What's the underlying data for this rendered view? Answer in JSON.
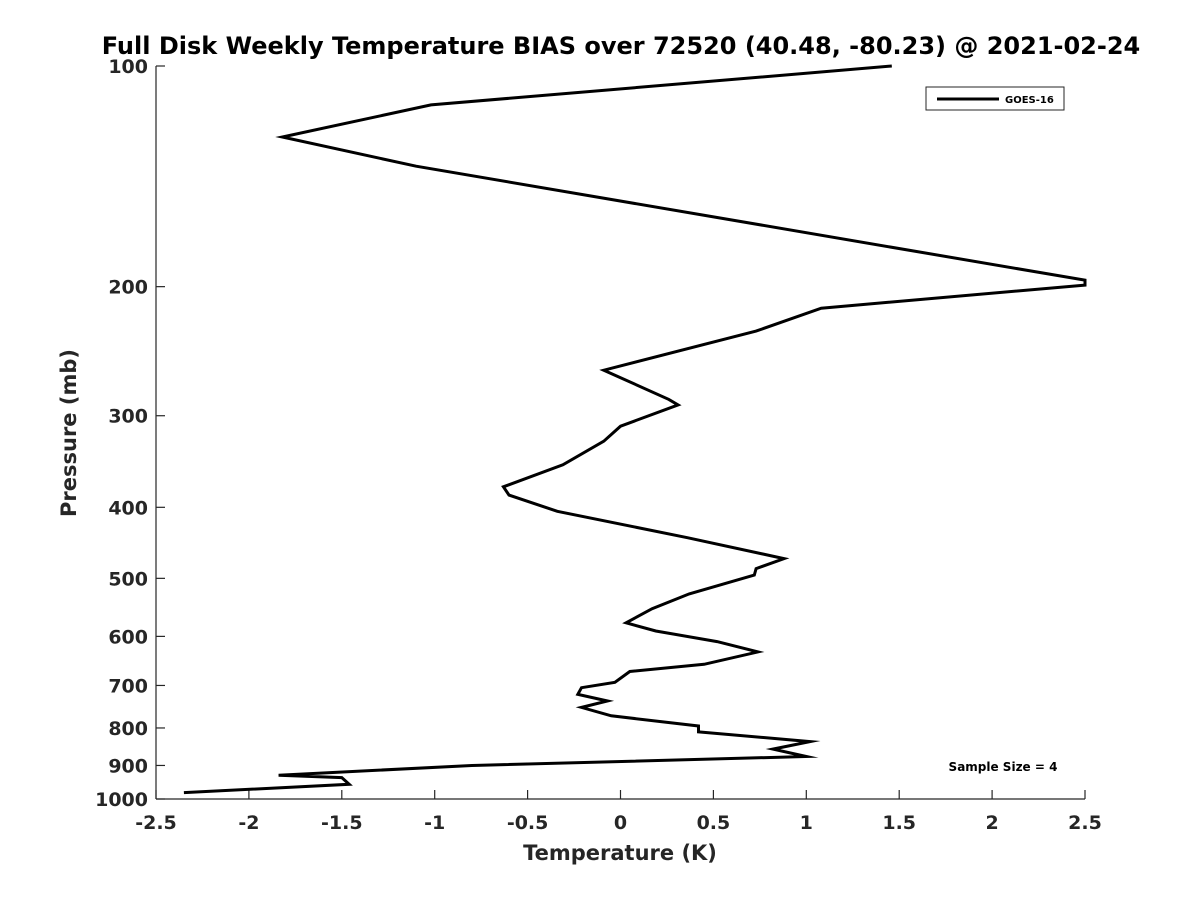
{
  "chart_data": {
    "type": "line",
    "title": "Full Disk Weekly Temperature BIAS over 72520 (40.48, -80.23) @ 2021-02-24",
    "xlabel": "Temperature (K)",
    "ylabel": "Pressure (mb)",
    "xlim": [
      -2.5,
      2.5
    ],
    "ylim": [
      100,
      1000
    ],
    "y_scale": "log",
    "y_reversed": true,
    "x_ticks": [
      "-2.5",
      "-2",
      "-1.5",
      "-1",
      "-0.5",
      "0",
      "0.5",
      "1",
      "1.5",
      "2",
      "2.5"
    ],
    "x_tick_values": [
      -2.5,
      -2,
      -1.5,
      -1,
      -0.5,
      0,
      0.5,
      1,
      1.5,
      2,
      2.5
    ],
    "y_ticks": [
      "100",
      "200",
      "300",
      "400",
      "500",
      "600",
      "700",
      "800",
      "900",
      "1000"
    ],
    "y_tick_values": [
      100,
      200,
      300,
      400,
      500,
      600,
      700,
      800,
      900,
      1000
    ],
    "grid": false,
    "legend_position": "top-right",
    "annotation": "Sample Size = 4",
    "series": [
      {
        "name": "GOES-16",
        "color": "#000000",
        "x": [
          1.46,
          -1.02,
          -1.82,
          -1.1,
          2.5,
          2.5,
          1.08,
          0.73,
          -0.09,
          0.26,
          0.31,
          0.0,
          -0.09,
          -0.31,
          -0.63,
          -0.6,
          -0.34,
          0.36,
          0.88,
          0.73,
          0.72,
          0.37,
          0.17,
          0.03,
          0.19,
          0.52,
          0.74,
          0.45,
          0.05,
          -0.03,
          -0.21,
          -0.23,
          -0.07,
          -0.21,
          -0.05,
          0.42,
          0.42,
          1.02,
          0.82,
          1.0,
          -0.8,
          -1.84,
          -1.5,
          -1.46,
          -2.35
        ],
        "y": [
          100,
          113,
          125,
          137,
          196,
          199,
          214,
          230,
          260,
          285,
          290,
          310,
          325,
          350,
          375,
          385,
          405,
          440,
          470,
          485,
          495,
          525,
          550,
          575,
          590,
          610,
          630,
          655,
          670,
          693,
          705,
          720,
          735,
          750,
          770,
          795,
          810,
          835,
          855,
          875,
          900,
          928,
          935,
          955,
          980
        ]
      }
    ]
  },
  "legend": {
    "label": "GOES-16"
  }
}
